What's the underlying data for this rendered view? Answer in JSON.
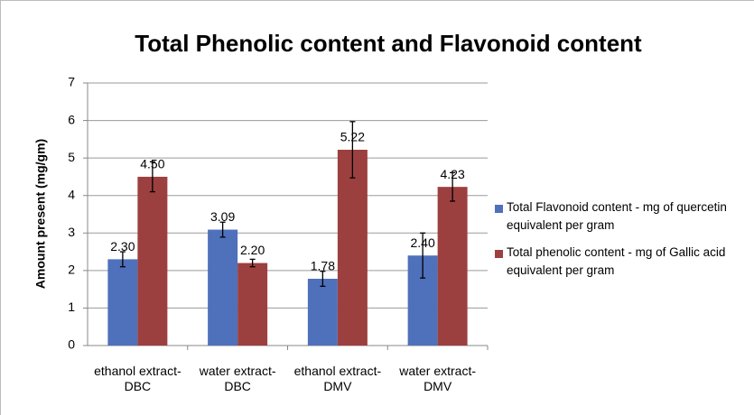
{
  "chart_data": {
    "type": "bar",
    "title": "Total Phenolic content and Flavonoid content",
    "y_label": "Amount present (mg/gm)",
    "categories": [
      "ethanol extract- DBC",
      "water extract- DBC",
      "ethanol extract- DMV",
      "water extract- DMV"
    ],
    "series": [
      {
        "name": "Total Flavonoid content - mg of quercetin equivalent per gram",
        "color": "#4f70bb",
        "values": [
          2.3,
          3.09,
          1.78,
          2.4
        ],
        "value_labels": [
          "2.30",
          "3.09",
          "1.78",
          "2.40"
        ],
        "errors": [
          0.2,
          0.2,
          0.2,
          0.6
        ]
      },
      {
        "name": "Total phenolic content - mg of Gallic acid equivalent per gram",
        "color": "#9c403f",
        "values": [
          4.5,
          2.2,
          5.22,
          4.23
        ],
        "value_labels": [
          "4.50",
          "2.20",
          "5.22",
          "4.23"
        ],
        "errors": [
          0.4,
          0.1,
          0.75,
          0.38
        ]
      }
    ],
    "ylim": [
      0,
      7
    ],
    "yticks": [
      0,
      1,
      2,
      3,
      4,
      5,
      6,
      7
    ],
    "grid": true,
    "legend": "right"
  }
}
